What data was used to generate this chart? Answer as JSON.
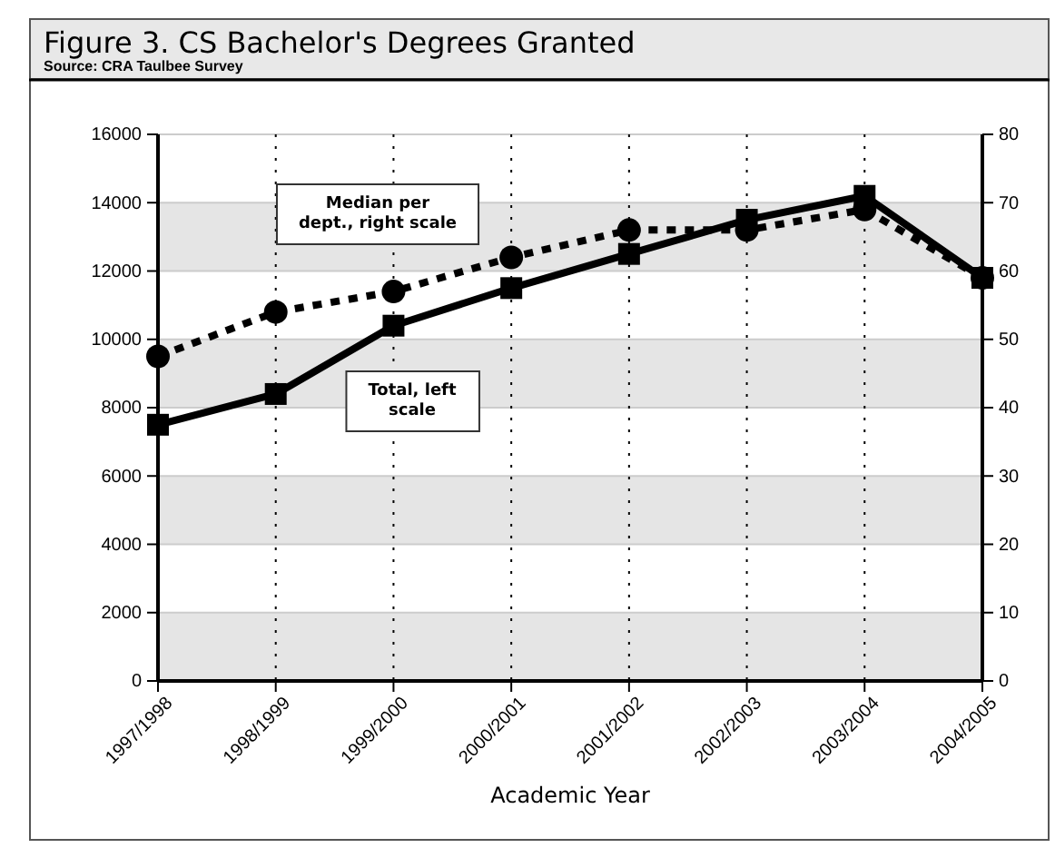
{
  "chart_data": {
    "type": "line",
    "title": "Figure 3. CS Bachelor's Degrees Granted",
    "subtitle": "Source: CRA Taulbee Survey",
    "xlabel": "Academic Year",
    "categories": [
      "1997/1998",
      "1998/1999",
      "1999/2000",
      "2000/2001",
      "2001/2002",
      "2002/2003",
      "2003/2004",
      "2004/2005"
    ],
    "series": [
      {
        "name": "Total, left scale",
        "color": "#000000",
        "marker": "square",
        "line_style": "solid",
        "values": [
          7500,
          8400,
          10400,
          11500,
          12500,
          13500,
          14200,
          11800
        ]
      },
      {
        "name": "Median per dept., right scale",
        "color": "#000000",
        "marker": "circle",
        "line_style": "dotted",
        "axis": "y2",
        "values": [
          47.5,
          54,
          57,
          62,
          66,
          66,
          69,
          59
        ]
      }
    ],
    "ylim": [
      0,
      16000
    ],
    "yticks": [
      0,
      2000,
      4000,
      6000,
      8000,
      10000,
      12000,
      14000,
      16000
    ],
    "y2lim": [
      0,
      80
    ],
    "y2ticks": [
      0,
      10,
      20,
      30,
      40,
      50,
      60,
      70,
      80
    ],
    "grid": true
  }
}
